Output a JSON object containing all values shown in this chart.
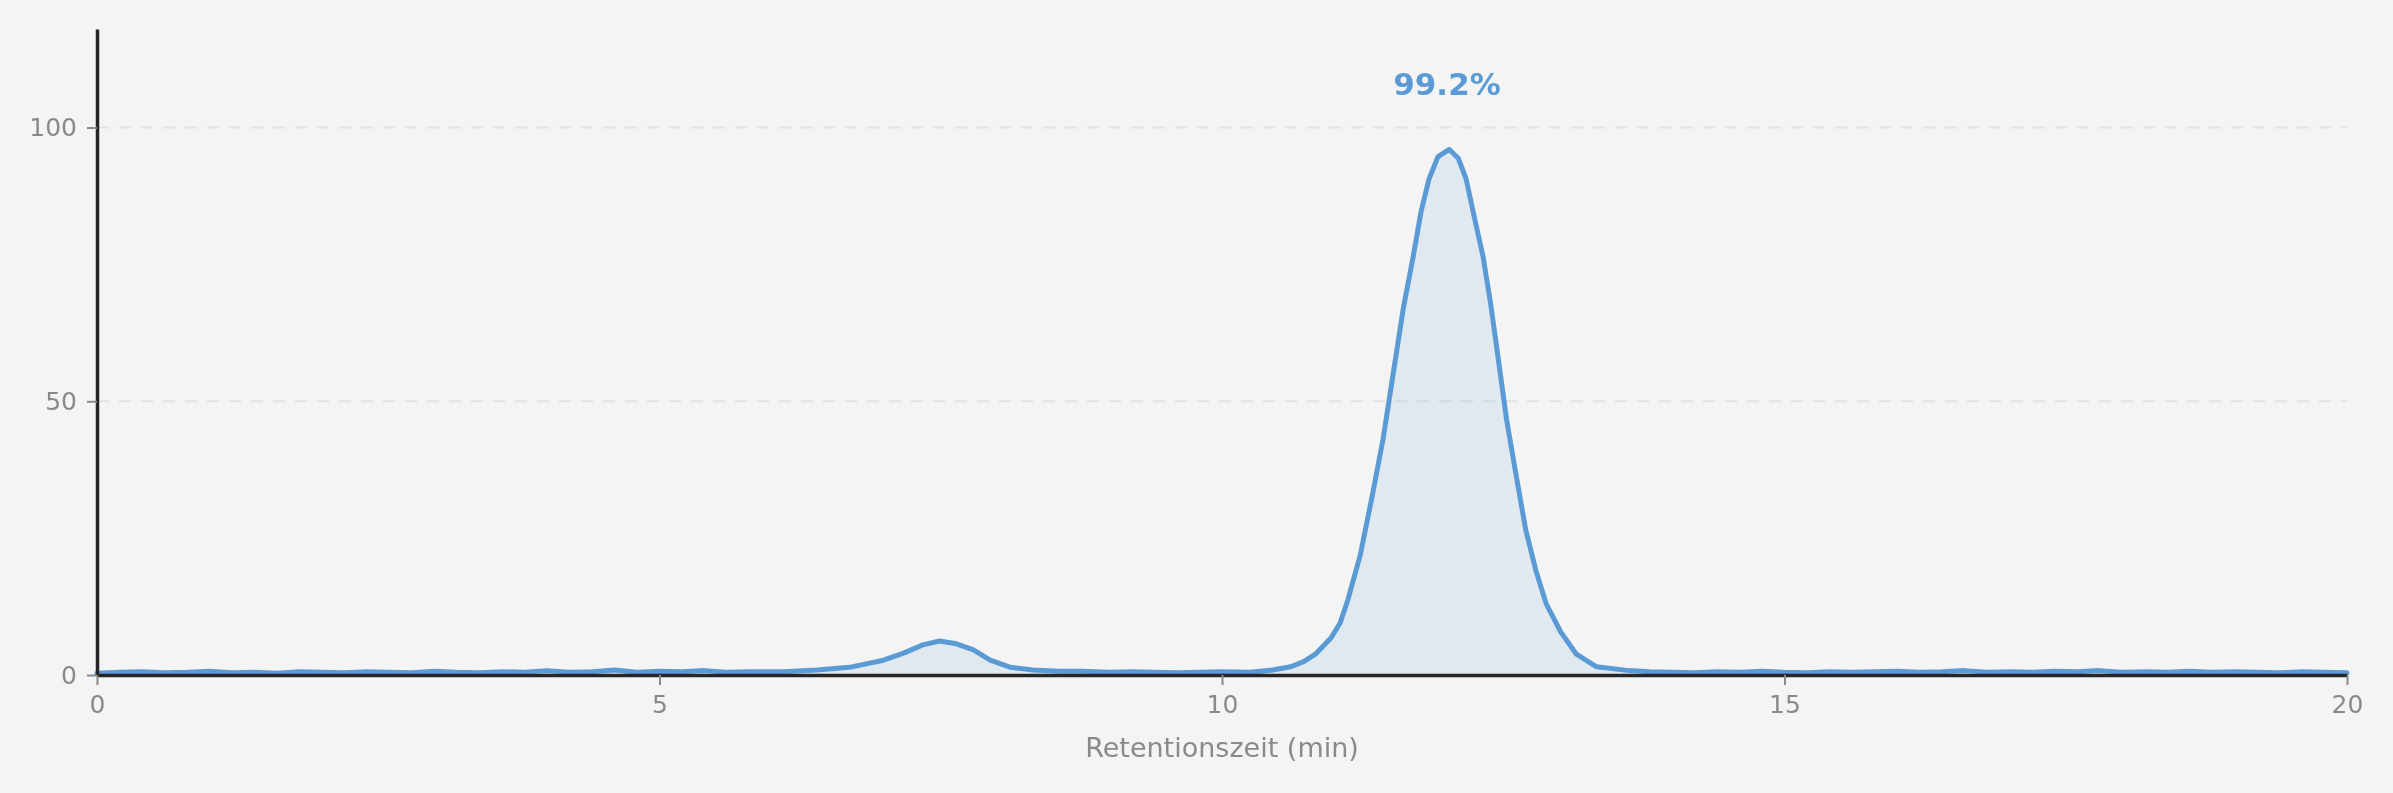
{
  "chart_data": {
    "type": "area",
    "xlabel": "Retentionszeit (min)",
    "color": "#5b9bd5",
    "x": [
      0,
      0.2,
      0.4,
      0.6,
      0.8,
      1,
      1.2,
      1.4,
      1.6,
      1.8,
      2,
      2.2,
      2.4,
      2.6,
      2.8,
      3,
      3.2,
      3.4,
      3.6,
      3.8,
      4,
      4.2,
      4.4,
      4.6,
      4.8,
      5,
      5.2,
      5.4,
      5.6,
      5.8,
      6.1,
      6.4,
      6.69,
      6.99,
      7.17,
      7.34,
      7.49,
      7.64,
      7.79,
      7.94,
      8.12,
      8.32,
      8.55,
      8.76,
      9,
      9.2,
      9.4,
      9.6,
      9.8,
      10,
      10.25,
      10.45,
      10.61,
      10.73,
      10.83,
      10.97,
      11.05,
      11.12,
      11.23,
      11.34,
      11.43,
      11.52,
      11.61,
      11.7,
      11.77,
      11.84,
      11.92,
      12.02,
      12.1,
      12.17,
      12.24,
      12.32,
      12.39,
      12.46,
      12.53,
      12.61,
      12.7,
      12.79,
      12.88,
      13.01,
      13.15,
      13.33,
      13.62,
      13.8,
      14,
      14.2,
      14.4,
      14.6,
      14.8,
      15,
      15.2,
      15.4,
      15.6,
      15.8,
      16,
      16.2,
      16.4,
      16.6,
      16.8,
      17,
      17.2,
      17.4,
      17.6,
      17.8,
      18,
      18.2,
      18.4,
      18.6,
      18.8,
      19,
      19.2,
      19.4,
      19.6,
      19.8,
      20
    ],
    "values": [
      0.3,
      0.5,
      0.6,
      0.4,
      0.5,
      0.7,
      0.4,
      0.5,
      0.3,
      0.6,
      0.5,
      0.4,
      0.6,
      0.5,
      0.4,
      0.7,
      0.5,
      0.4,
      0.6,
      0.5,
      0.8,
      0.5,
      0.6,
      0.9,
      0.5,
      0.7,
      0.6,
      0.8,
      0.5,
      0.6,
      0.6,
      0.9,
      1.4,
      2.7,
      4,
      5.5,
      6.2,
      5.7,
      4.6,
      2.7,
      1.4,
      0.9,
      0.7,
      0.7,
      0.5,
      0.6,
      0.5,
      0.4,
      0.5,
      0.6,
      0.5,
      0.9,
      1.5,
      2.5,
      3.8,
      6.8,
      9.5,
      13.8,
      22,
      33.2,
      42.9,
      54.8,
      66.8,
      76.5,
      84.7,
      90.6,
      94.7,
      96,
      94.4,
      90.6,
      83.9,
      76.5,
      67.5,
      57.1,
      46.6,
      37,
      26.5,
      19.1,
      13.1,
      7.9,
      3.8,
      1.5,
      0.8,
      0.6,
      0.5,
      0.4,
      0.6,
      0.5,
      0.7,
      0.5,
      0.4,
      0.6,
      0.5,
      0.6,
      0.7,
      0.5,
      0.6,
      0.8,
      0.5,
      0.6,
      0.5,
      0.7,
      0.6,
      0.8,
      0.5,
      0.6,
      0.5,
      0.7,
      0.5,
      0.6,
      0.5,
      0.4,
      0.6,
      0.5,
      0.4
    ],
    "xlim": [
      0,
      20
    ],
    "ylim": [
      0,
      118
    ],
    "xticks": [
      0,
      5,
      10,
      15,
      20
    ],
    "yticks": [
      0,
      50,
      100
    ],
    "grid": "y",
    "annotations": [
      {
        "text": "99.2%",
        "x": 12,
        "y": 96
      }
    ]
  }
}
